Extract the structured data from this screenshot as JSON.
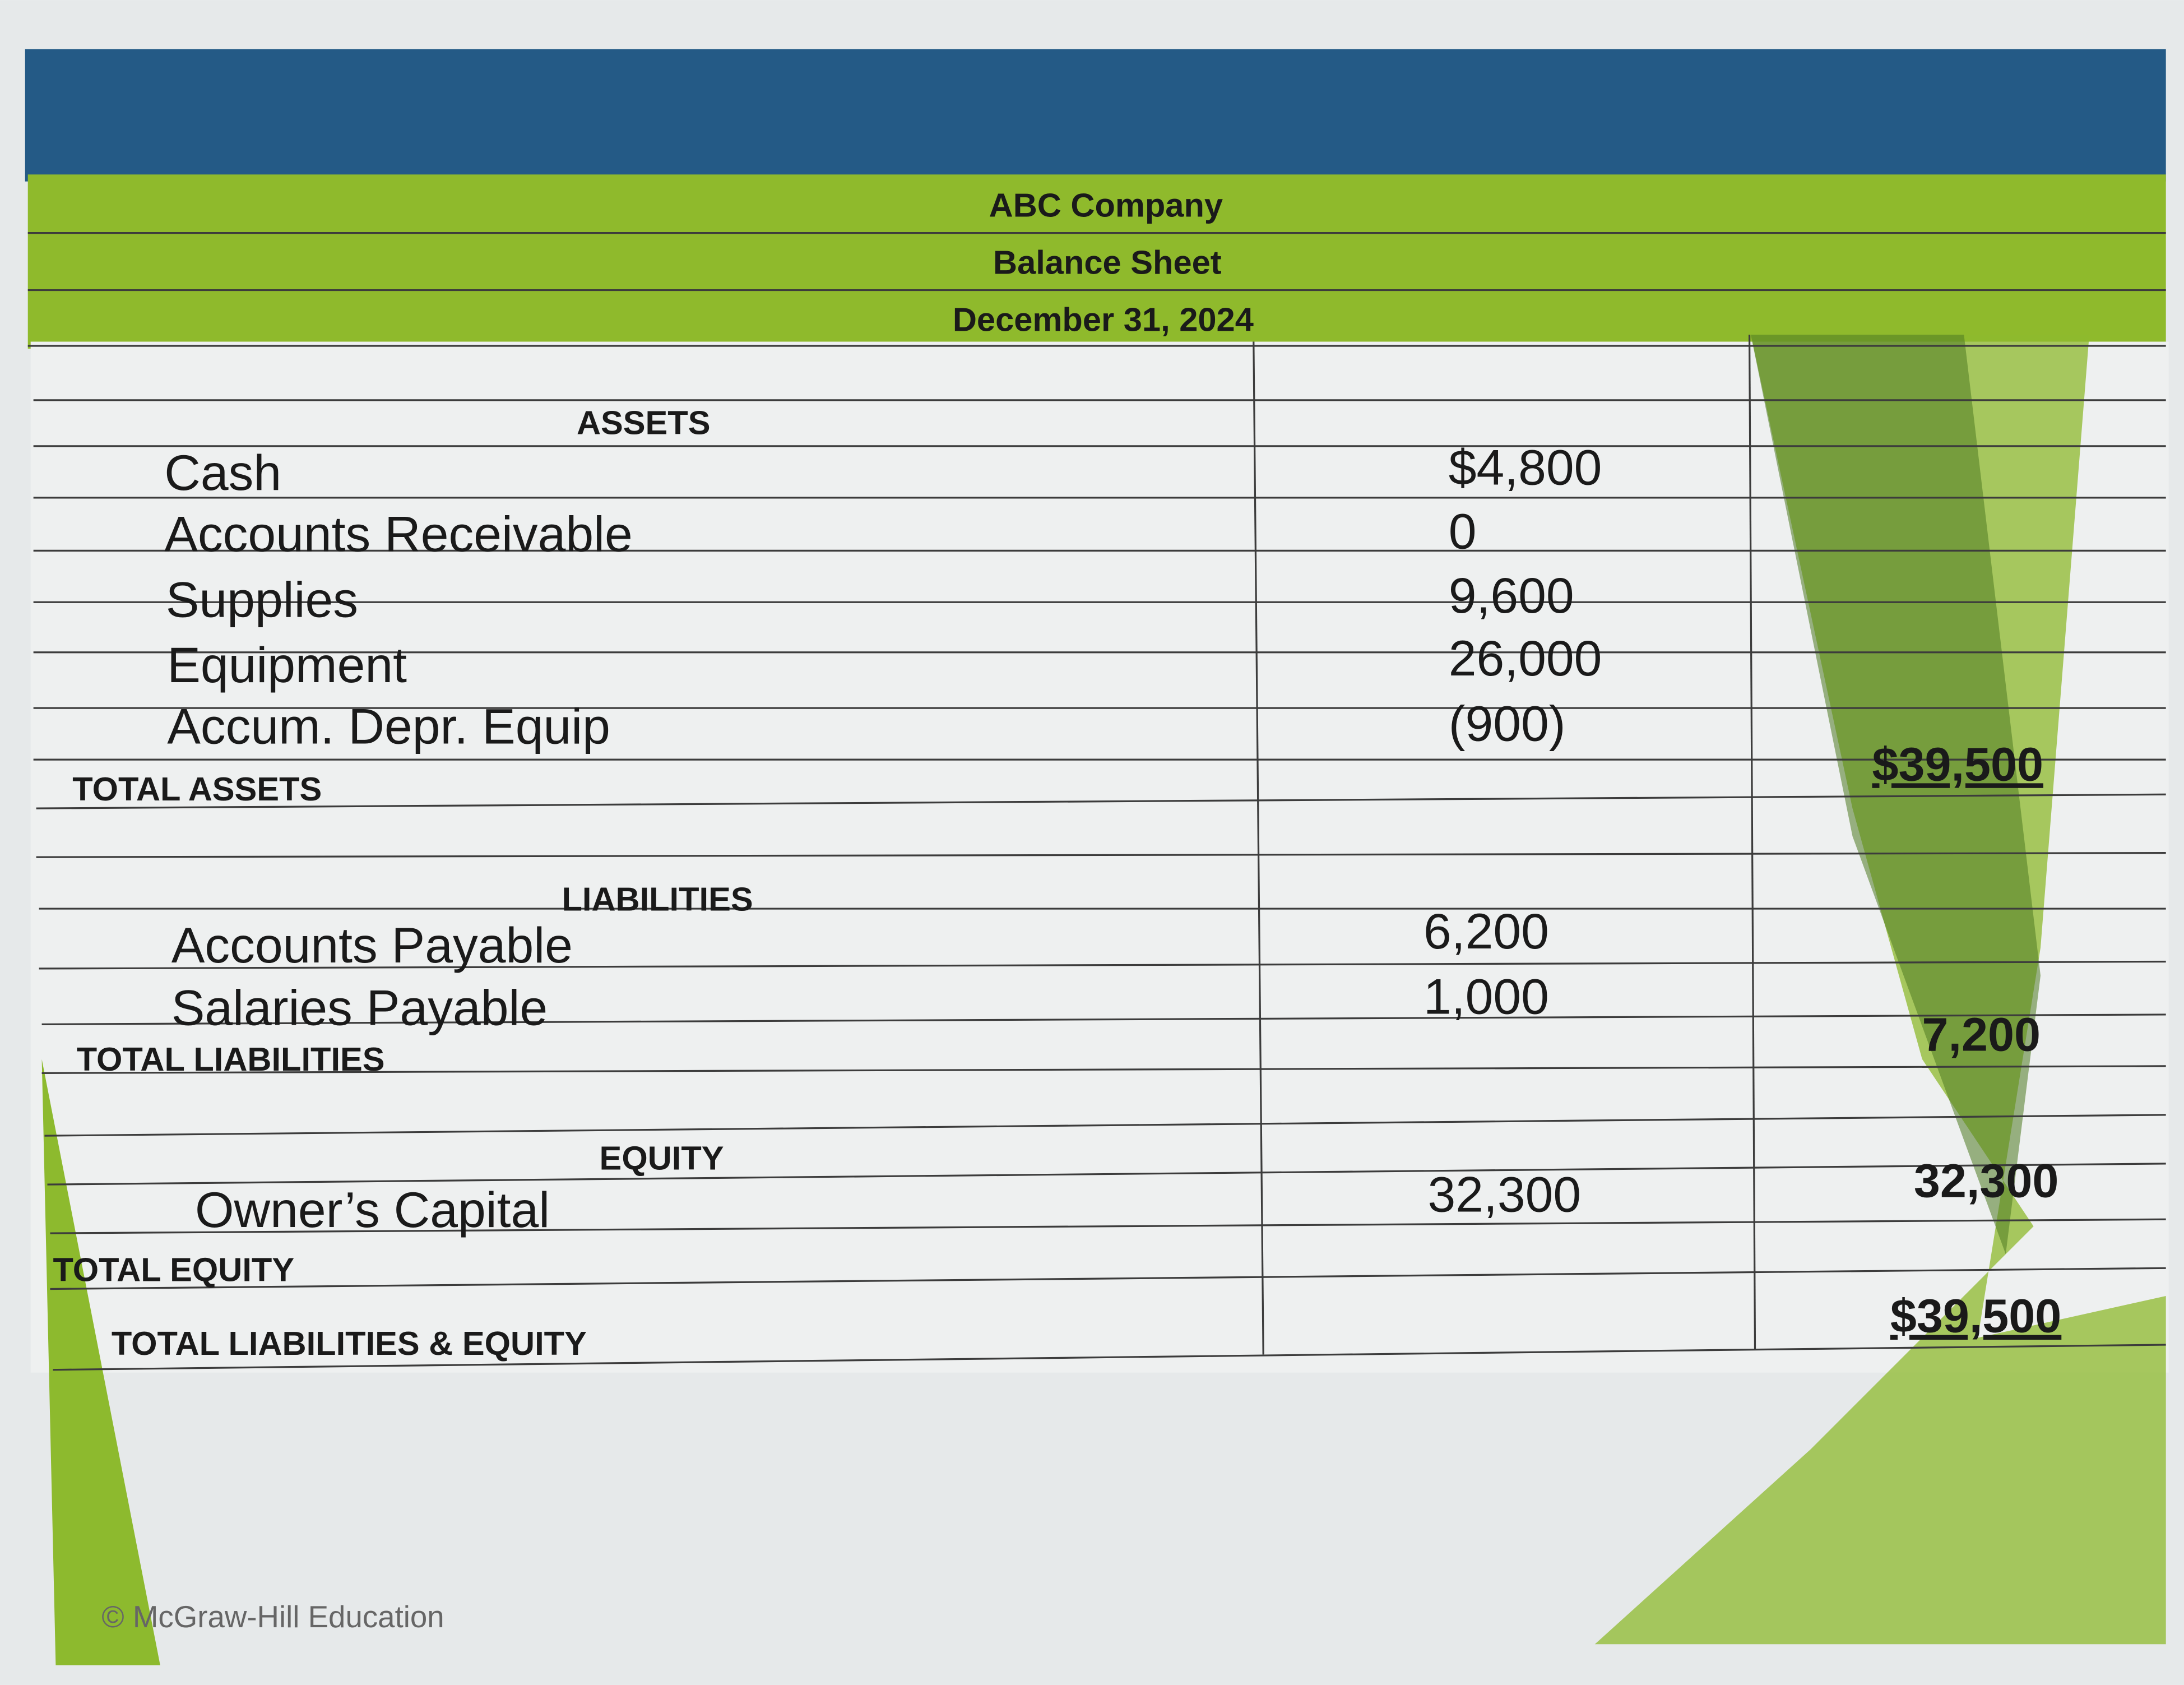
{
  "header": {
    "company": "ABC Company",
    "title": "Balance Sheet",
    "date": "December 31, 2024"
  },
  "assets": {
    "heading": "ASSETS",
    "rows": [
      {
        "label": "Cash",
        "amount": "$4,800"
      },
      {
        "label": "Accounts Receivable",
        "amount": "0"
      },
      {
        "label": "Supplies",
        "amount": "9,600"
      },
      {
        "label": "Equipment",
        "amount": "26,000"
      },
      {
        "label": "Accum. Depr. Equip",
        "amount": "(900)"
      }
    ],
    "total": {
      "label": "TOTAL ASSETS",
      "amount": "$39,500"
    }
  },
  "liabilities": {
    "heading": "LIABILITIES",
    "rows": [
      {
        "label": "Accounts Payable",
        "amount": "6,200"
      },
      {
        "label": "Salaries Payable",
        "amount": "1,000"
      }
    ],
    "total": {
      "label": "TOTAL LIABILITIES",
      "amount": "7,200"
    }
  },
  "equity": {
    "heading": "EQUITY",
    "rows": [
      {
        "label": "Owner’s Capital",
        "amount": "32,300"
      }
    ],
    "total": {
      "label": "TOTAL EQUITY",
      "amount": "32,300"
    }
  },
  "grand_total": {
    "label": "TOTAL LIABILITIES & EQUITY",
    "amount": "$39,500"
  },
  "footer": {
    "copyright": "© McGraw-Hill Education"
  }
}
